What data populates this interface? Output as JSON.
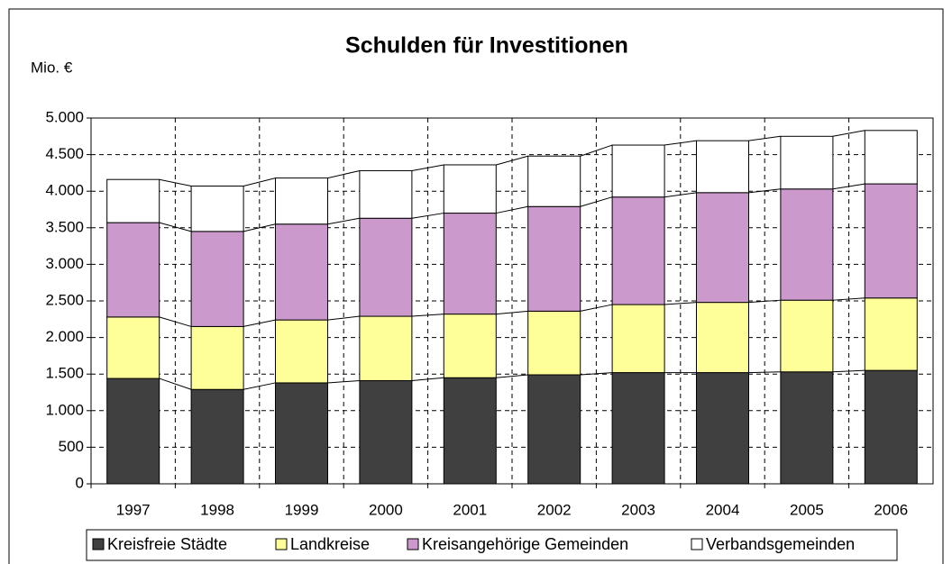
{
  "chart_data": {
    "type": "stacked_bar",
    "title": "Schulden für Investitionen",
    "y_label": "Mio. €",
    "categories": [
      "1997",
      "1998",
      "1999",
      "2000",
      "2001",
      "2002",
      "2003",
      "2004",
      "2005",
      "2006"
    ],
    "series": [
      {
        "name": "Kreisfreie Städte",
        "color": "#404040",
        "values": [
          1440,
          1290,
          1380,
          1410,
          1450,
          1490,
          1520,
          1520,
          1530,
          1550
        ]
      },
      {
        "name": "Landkreise",
        "color": "#ffff99",
        "values": [
          840,
          860,
          860,
          880,
          870,
          870,
          930,
          960,
          980,
          990
        ]
      },
      {
        "name": "Kreisangehörige Gemeinden",
        "color": "#cc99cc",
        "values": [
          1290,
          1300,
          1310,
          1340,
          1380,
          1430,
          1470,
          1500,
          1520,
          1560
        ]
      },
      {
        "name": "Verbandsgemeinden",
        "color": "#ffffff",
        "values": [
          590,
          620,
          630,
          650,
          660,
          690,
          710,
          710,
          720,
          730
        ]
      }
    ],
    "ylim": [
      0,
      5000
    ],
    "yticks": [
      0,
      500,
      {
        "value": 1000,
        "label": "1.000"
      },
      {
        "value": 1500,
        "label": "1.500"
      },
      {
        "value": 2000,
        "label": "2.000"
      },
      {
        "value": 2500,
        "label": "2.500"
      },
      {
        "value": 3000,
        "label": "3.000"
      },
      {
        "value": 3500,
        "label": "3.500"
      },
      {
        "value": 4000,
        "label": "4.000"
      },
      {
        "value": 4500,
        "label": "4.500"
      },
      {
        "value": 5000,
        "label": "5.000"
      }
    ],
    "grid": true,
    "legend": "bottom"
  }
}
